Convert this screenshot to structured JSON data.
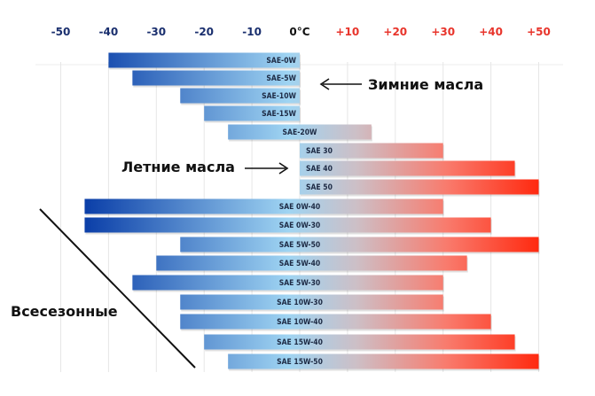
{
  "chart_data": {
    "type": "bar",
    "orientation": "horizontal-range",
    "unit": "°C",
    "xlim": [
      -50,
      50
    ],
    "tick_labels": [
      "-50",
      "-40",
      "-30",
      "-20",
      "-10",
      "0°C",
      "+10",
      "+20",
      "+30",
      "+40",
      "+50"
    ],
    "tick_values": [
      -50,
      -40,
      -30,
      -20,
      -10,
      0,
      10,
      20,
      30,
      40,
      50
    ],
    "grid": true,
    "colors": {
      "cold_dark": "#0a3ea8",
      "cold_light": "#9fd4f2",
      "neutral": "#cdbfc6",
      "warm": "#ff2a10",
      "tick_negative": "#1a2f6e",
      "tick_zero": "#111111",
      "tick_positive": "#e8342b"
    },
    "bars": [
      {
        "label": "SAE-0W",
        "min": -40,
        "max": 0,
        "group": "winter"
      },
      {
        "label": "SAE-5W",
        "min": -35,
        "max": 0,
        "group": "winter"
      },
      {
        "label": "SAE-10W",
        "min": -25,
        "max": 0,
        "group": "winter"
      },
      {
        "label": "SAE-15W",
        "min": -20,
        "max": 0,
        "group": "winter"
      },
      {
        "label": "SAE-20W",
        "min": -15,
        "max": 15,
        "group": "winter"
      },
      {
        "label": "SAE 30",
        "min": 0,
        "max": 30,
        "group": "summer"
      },
      {
        "label": "SAE 40",
        "min": 0,
        "max": 45,
        "group": "summer"
      },
      {
        "label": "SAE 50",
        "min": 0,
        "max": 50,
        "group": "summer"
      },
      {
        "label": "SAE 0W-40",
        "min": -45,
        "max": 30,
        "group": "all"
      },
      {
        "label": "SAE 0W-30",
        "min": -45,
        "max": 40,
        "group": "all"
      },
      {
        "label": "SAE 5W-50",
        "min": -25,
        "max": 50,
        "group": "all"
      },
      {
        "label": "SAE 5W-40",
        "min": -30,
        "max": 35,
        "group": "all"
      },
      {
        "label": "SAE 5W-30",
        "min": -35,
        "max": 30,
        "group": "all"
      },
      {
        "label": "SAE 10W-30",
        "min": -25,
        "max": 30,
        "group": "all"
      },
      {
        "label": "SAE 10W-40",
        "min": -25,
        "max": 40,
        "group": "all"
      },
      {
        "label": "SAE 15W-40",
        "min": -20,
        "max": 45,
        "group": "all"
      },
      {
        "label": "SAE 15W-50",
        "min": -15,
        "max": 50,
        "group": "all"
      }
    ],
    "annotations": {
      "winter": "Зимние масла",
      "summer": "Летние масла",
      "all_season": "Всесезонные"
    }
  }
}
